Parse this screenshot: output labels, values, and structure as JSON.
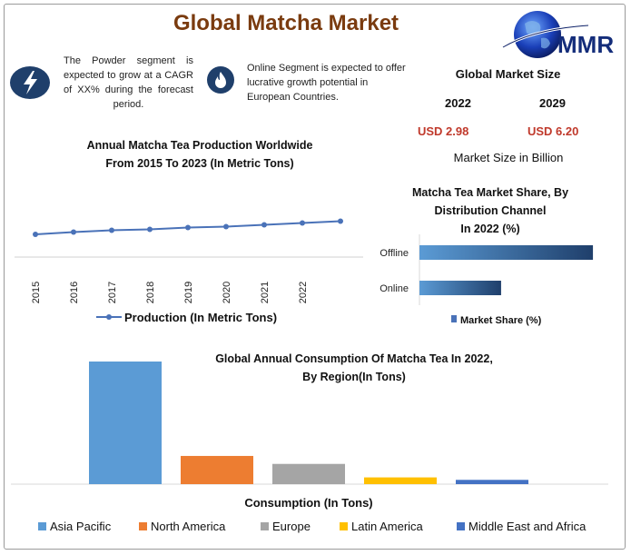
{
  "header": {
    "title": "Global Matcha Market",
    "logo_text": "MMR"
  },
  "info": {
    "powder": {
      "icon": "lightning-icon",
      "text": "The Powder segment is expected to grow at a CAGR of XX% during the forecast period."
    },
    "online": {
      "icon": "flame-icon",
      "text": "Online Segment is expected to offer lucrative growth potential in European Countries."
    }
  },
  "market_size": {
    "title": "Global Market Size",
    "year1": "2022",
    "value1": "USD 2.98",
    "year2": "2029",
    "value2": "USD 6.20",
    "unit": "Market Size in Billion"
  },
  "colors": {
    "title": "#7a3b0f",
    "series_line": "#4a72b8",
    "asia_pacific": "#5b9bd5",
    "north_america": "#ed7d31",
    "europe": "#a5a5a5",
    "latin_america": "#ffc000",
    "middle_east_africa": "#4472c4",
    "value_text": "#c0392b"
  },
  "chart_data": [
    {
      "type": "line",
      "title_line1": "Annual Matcha Tea Production Worldwide",
      "title_line2": "From 2015 To 2023 (In Metric Tons)",
      "x": [
        "2015",
        "2016",
        "2017",
        "2018",
        "2019",
        "2020",
        "2021",
        "2022",
        "2023"
      ],
      "x_tick_labels": [
        "2015",
        "2016",
        "2017",
        "2018",
        "2019",
        "2020",
        "2021",
        "2022"
      ],
      "series": [
        {
          "name": "Production (In Metric Tons)",
          "values": [
            42,
            44.5,
            46.5,
            47.5,
            49.5,
            50.5,
            52.5,
            54.5,
            56.5
          ]
        }
      ],
      "ylim": [
        0,
        100
      ],
      "legend": "bottom"
    },
    {
      "type": "bar",
      "orientation": "horizontal",
      "title_line1": "Matcha Tea Market Share, By",
      "title_line2": "Distribution Channel",
      "title_line3": "In 2022 (%)",
      "categories": [
        "Offline",
        "Online"
      ],
      "series": [
        {
          "name": "Market Share (%)",
          "values": [
            68,
            32
          ]
        }
      ],
      "xlim": [
        0,
        100
      ],
      "legend": "bottom"
    },
    {
      "type": "bar",
      "title_line1": "Global Annual Consumption Of  Matcha Tea In 2022,",
      "title_line2": "By Region(In Tons)",
      "xlabel": "Consumption (In Tons)",
      "categories": [
        "Asia Pacific",
        "North America",
        "Europe",
        "Latin America",
        "Middle East and Africa"
      ],
      "values": [
        100,
        23,
        16.5,
        5.5,
        3.5
      ],
      "ylim": [
        0,
        100
      ],
      "legend": "bottom"
    }
  ]
}
